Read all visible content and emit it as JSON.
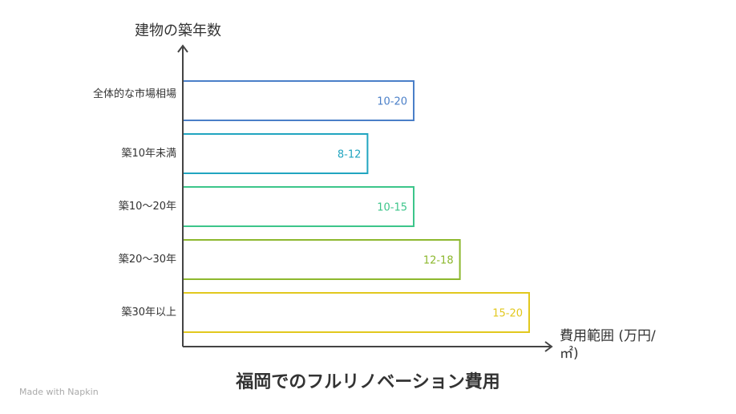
{
  "chart_data": {
    "type": "bar",
    "orientation": "horizontal",
    "title": "福岡でのフルリノベーション費用",
    "ylabel": "建物の築年数",
    "xlabel": "費用範囲 (万円/㎡)",
    "categories": [
      "全体的な市場相場",
      "築10年未満",
      "築10～20年",
      "築20～30年",
      "築30年以上"
    ],
    "ranges": [
      "10-20",
      "8-12",
      "10-15",
      "12-18",
      "15-20"
    ],
    "relative_bar_length": [
      5,
      4,
      5,
      6,
      7.5
    ],
    "colors": [
      "#4a7fc8",
      "#21a5c0",
      "#3cc58a",
      "#8db82e",
      "#e2c81e"
    ]
  },
  "watermark": "Made with Napkin"
}
